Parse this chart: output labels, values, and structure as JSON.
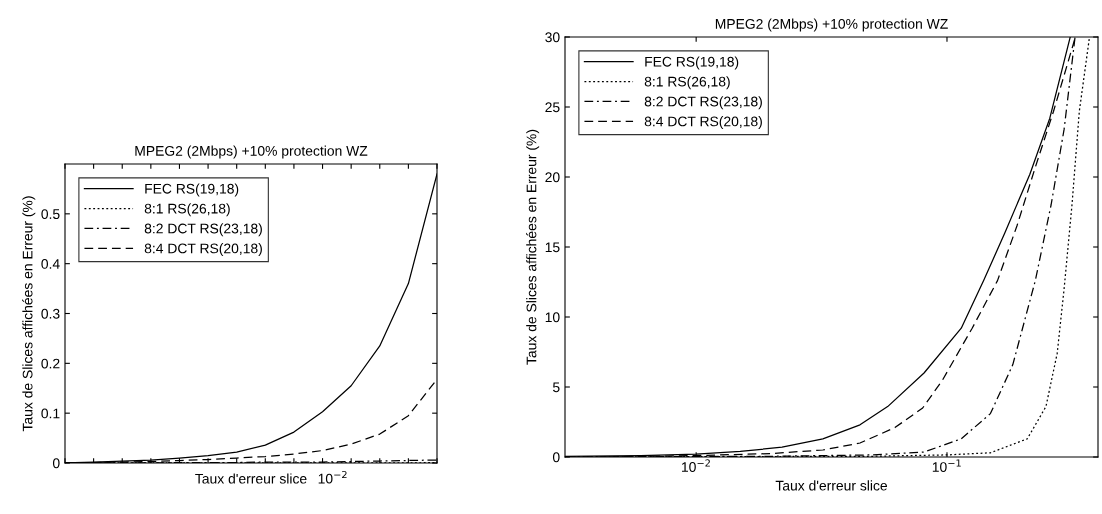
{
  "chart_data": [
    {
      "type": "line",
      "title": "MPEG2 (2Mbps) +10% protection WZ",
      "xlabel": "Taux d'erreur slice",
      "ylabel": "Taux de Slices affichées en Erreur (%)",
      "annotations": [
        "10$^{−2}$"
      ],
      "categories": [
        null,
        null,
        null,
        null,
        null,
        null,
        null,
        null,
        null,
        null,
        null,
        null,
        null,
        null
      ],
      "ylim": [
        0,
        0.6
      ],
      "yticks": [
        0,
        0.1,
        0.2,
        0.3,
        0.4,
        0.5
      ],
      "legend": "top left",
      "grid": false,
      "series": [
        {
          "name": "FEC RS(19,18)",
          "color": "#000000",
          "line_style": "solid",
          "values": [
            0,
            0.002,
            0.004,
            0.006,
            0.01,
            0.015,
            0.022,
            0.036,
            0.062,
            0.103,
            0.155,
            0.235,
            0.36,
            0.58
          ]
        },
        {
          "name": "8:1 RS(26,18)",
          "color": "#000000",
          "line_style": "dotted",
          "values": [
            0,
            0,
            0,
            0,
            0,
            0,
            0,
            0,
            0,
            0,
            0,
            0,
            0,
            0.001
          ]
        },
        {
          "name": "8:2 DCT RS(23,18)",
          "color": "#000000",
          "line_style": "dashdot",
          "values": [
            0,
            0,
            0,
            0,
            0.001,
            0.001,
            0.001,
            0.002,
            0.002,
            0.002,
            0.003,
            0.004,
            0.005,
            0.006
          ]
        },
        {
          "name": "8:4 DCT RS(20,18)",
          "color": "#000000",
          "line_style": "dashed",
          "values": [
            0,
            0.001,
            0.002,
            0.003,
            0.005,
            0.007,
            0.01,
            0.013,
            0.018,
            0.025,
            0.038,
            0.058,
            0.095,
            0.168
          ]
        }
      ]
    },
    {
      "type": "line",
      "title": "MPEG2 (2Mbps) +10% protection WZ",
      "xlabel": "Taux d'erreur slice",
      "ylabel": "Taux de Slices affichées en Erreur (%)",
      "log": "x",
      "xlim": [
        0.003,
        0.4
      ],
      "xticks": [
        {
          "value": 0.01,
          "label": "10$^{−2}$"
        },
        {
          "value": 0.1,
          "label": "10$^{−1}$"
        }
      ],
      "ylim": [
        0,
        30
      ],
      "yticks": [
        0,
        5,
        10,
        15,
        20,
        25,
        30
      ],
      "legend": "top left",
      "grid": false,
      "series": [
        {
          "name": "FEC RS(19,18)",
          "color": "#000000",
          "line_style": "solid",
          "x": [
            0.003,
            0.006,
            0.01,
            0.015,
            0.022,
            0.032,
            0.045,
            0.058,
            0.081,
            0.114,
            0.14,
            0.17,
            0.214,
            0.257,
            0.31
          ],
          "values": [
            0.05,
            0.1,
            0.2,
            0.4,
            0.7,
            1.3,
            2.3,
            3.6,
            6.0,
            9.2,
            12.6,
            16,
            20.2,
            24.2,
            30
          ]
        },
        {
          "name": "8:1 RS(26,18)",
          "color": "#000000",
          "line_style": "dotted",
          "x": [
            0.003,
            0.05,
            0.1,
            0.149,
            0.209,
            0.248,
            0.275,
            0.293,
            0.315,
            0.337,
            0.37
          ],
          "values": [
            0,
            0.05,
            0.15,
            0.3,
            1.3,
            3.6,
            7.4,
            12.0,
            18,
            24.7,
            30
          ]
        },
        {
          "name": "8:2 DCT RS(23,18)",
          "color": "#000000",
          "line_style": "dashdot",
          "x": [
            0.003,
            0.02,
            0.05,
            0.081,
            0.114,
            0.149,
            0.183,
            0.225,
            0.26,
            0.293,
            0.324
          ],
          "values": [
            0,
            0.05,
            0.15,
            0.35,
            1.3,
            3.1,
            6.6,
            12.6,
            18,
            23.4,
            30
          ]
        },
        {
          "name": "8:4 DCT RS(20,18)",
          "color": "#000000",
          "line_style": "dashed",
          "x": [
            0.004,
            0.01,
            0.02,
            0.032,
            0.045,
            0.062,
            0.08,
            0.096,
            0.126,
            0.159,
            0.19,
            0.225,
            0.266,
            0.325
          ],
          "values": [
            0,
            0.1,
            0.25,
            0.5,
            1.0,
            2.1,
            3.5,
            5.5,
            9.2,
            12.6,
            16.5,
            20.7,
            24.7,
            30
          ]
        }
      ]
    }
  ]
}
